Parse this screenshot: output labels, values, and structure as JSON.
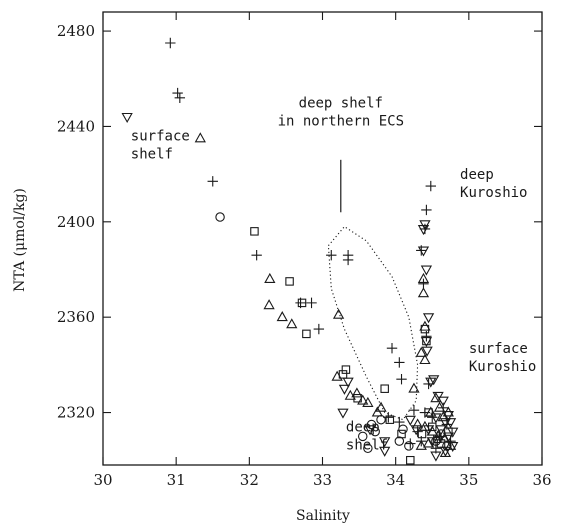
{
  "chart_data": {
    "type": "scatter",
    "title": "",
    "xlabel": "Salinity",
    "ylabel": "NTA (μmol/kg)",
    "xlim": [
      30,
      36
    ],
    "ylim": [
      2298,
      2488
    ],
    "x_ticks": [
      30,
      31,
      32,
      33,
      34,
      35,
      36
    ],
    "y_ticks": [
      2320,
      2360,
      2400,
      2440,
      2480
    ],
    "grid": false,
    "legend": "none",
    "series": [
      {
        "marker": "plus",
        "points": [
          [
            30.92,
            2475
          ],
          [
            31.02,
            2454
          ],
          [
            31.05,
            2452
          ],
          [
            31.5,
            2417
          ],
          [
            32.1,
            2386
          ],
          [
            32.7,
            2366
          ],
          [
            32.85,
            2366
          ],
          [
            32.95,
            2355
          ],
          [
            33.12,
            2386
          ],
          [
            33.35,
            2386
          ],
          [
            33.35,
            2384
          ],
          [
            33.95,
            2347
          ],
          [
            34.05,
            2341
          ],
          [
            34.08,
            2334
          ],
          [
            34.35,
            2388
          ],
          [
            34.4,
            2397
          ],
          [
            34.42,
            2405
          ],
          [
            34.48,
            2415
          ],
          [
            34.38,
            2374
          ],
          [
            34.42,
            2352
          ],
          [
            34.45,
            2332
          ],
          [
            34.25,
            2321
          ],
          [
            34.4,
            2320
          ],
          [
            34.3,
            2312
          ],
          [
            34.5,
            2318
          ],
          [
            34.6,
            2310
          ],
          [
            34.55,
            2305
          ],
          [
            34.7,
            2315
          ],
          [
            34.65,
            2322
          ],
          [
            34.2,
            2307
          ],
          [
            34.35,
            2308
          ],
          [
            34.75,
            2308
          ],
          [
            33.9,
            2318
          ],
          [
            34.05,
            2316
          ]
        ]
      },
      {
        "marker": "triangle-up",
        "points": [
          [
            31.33,
            2435
          ],
          [
            32.28,
            2376
          ],
          [
            32.27,
            2365
          ],
          [
            32.45,
            2360
          ],
          [
            32.58,
            2357
          ],
          [
            33.22,
            2361
          ],
          [
            33.2,
            2335
          ],
          [
            33.38,
            2327
          ],
          [
            33.47,
            2328
          ],
          [
            33.55,
            2325
          ],
          [
            33.62,
            2324
          ],
          [
            33.8,
            2322
          ],
          [
            34.38,
            2376
          ],
          [
            34.38,
            2370
          ],
          [
            34.4,
            2356
          ],
          [
            34.35,
            2345
          ],
          [
            34.4,
            2342
          ],
          [
            34.25,
            2330
          ],
          [
            34.55,
            2326
          ],
          [
            34.6,
            2322
          ],
          [
            34.65,
            2318
          ],
          [
            34.72,
            2320
          ],
          [
            34.48,
            2320
          ],
          [
            34.3,
            2315
          ],
          [
            34.4,
            2314
          ],
          [
            34.5,
            2312
          ],
          [
            34.58,
            2310
          ],
          [
            34.67,
            2309
          ],
          [
            34.75,
            2306
          ],
          [
            34.35,
            2306
          ],
          [
            34.45,
            2307
          ],
          [
            34.68,
            2303
          ],
          [
            33.75,
            2320
          ]
        ]
      },
      {
        "marker": "triangle-down",
        "points": [
          [
            30.33,
            2444
          ],
          [
            33.3,
            2330
          ],
          [
            33.35,
            2333
          ],
          [
            33.28,
            2320
          ],
          [
            33.65,
            2313
          ],
          [
            33.85,
            2308
          ],
          [
            33.85,
            2304
          ],
          [
            34.38,
            2397
          ],
          [
            34.4,
            2399
          ],
          [
            34.38,
            2388
          ],
          [
            34.42,
            2380
          ],
          [
            34.45,
            2360
          ],
          [
            34.42,
            2350
          ],
          [
            34.43,
            2346
          ],
          [
            34.52,
            2334
          ],
          [
            34.48,
            2333
          ],
          [
            34.58,
            2327
          ],
          [
            34.65,
            2325
          ],
          [
            34.72,
            2319
          ],
          [
            34.75,
            2316
          ],
          [
            34.78,
            2312
          ],
          [
            34.55,
            2318
          ],
          [
            34.62,
            2313
          ],
          [
            34.68,
            2316
          ],
          [
            34.72,
            2310
          ],
          [
            34.78,
            2306
          ],
          [
            34.5,
            2308
          ],
          [
            34.55,
            2302
          ],
          [
            34.68,
            2304
          ],
          [
            34.45,
            2313
          ],
          [
            34.2,
            2317
          ],
          [
            34.28,
            2313
          ]
        ]
      },
      {
        "marker": "square",
        "points": [
          [
            32.07,
            2396
          ],
          [
            32.55,
            2375
          ],
          [
            32.72,
            2366
          ],
          [
            32.78,
            2353
          ],
          [
            33.28,
            2336
          ],
          [
            33.32,
            2338
          ],
          [
            33.48,
            2326
          ],
          [
            33.85,
            2330
          ],
          [
            33.92,
            2317
          ],
          [
            34.2,
            2300
          ],
          [
            34.4,
            2355
          ],
          [
            34.42,
            2350
          ],
          [
            34.45,
            2320
          ],
          [
            34.5,
            2314
          ],
          [
            34.57,
            2309
          ],
          [
            34.62,
            2307
          ],
          [
            34.72,
            2312
          ],
          [
            34.36,
            2311
          ],
          [
            34.08,
            2311
          ]
        ]
      },
      {
        "marker": "circle",
        "points": [
          [
            31.6,
            2402
          ],
          [
            33.67,
            2315
          ],
          [
            33.72,
            2312
          ],
          [
            33.8,
            2317
          ],
          [
            34.05,
            2308
          ],
          [
            34.1,
            2313
          ],
          [
            34.18,
            2306
          ],
          [
            34.62,
            2311
          ],
          [
            34.7,
            2306
          ],
          [
            33.55,
            2310
          ],
          [
            33.62,
            2305
          ],
          [
            34.55,
            2308
          ]
        ]
      }
    ],
    "region_outline": {
      "style": "dotted",
      "label": "deep shelf in northern ECS",
      "points": [
        [
          33.08,
          2390
        ],
        [
          33.3,
          2398
        ],
        [
          33.6,
          2392
        ],
        [
          33.95,
          2377
        ],
        [
          34.18,
          2360
        ],
        [
          34.3,
          2340
        ],
        [
          34.28,
          2325
        ],
        [
          34.1,
          2317
        ],
        [
          33.85,
          2320
        ],
        [
          33.6,
          2335
        ],
        [
          33.3,
          2355
        ],
        [
          33.12,
          2372
        ],
        [
          33.08,
          2390
        ]
      ]
    },
    "annotations": [
      {
        "lines": [
          "surface",
          "shelf"
        ],
        "at": [
          30.38,
          2434
        ]
      },
      {
        "lines": [
          "deep shelf",
          "in northern ECS"
        ],
        "at": [
          33.22,
          2448
        ]
      },
      {
        "lines": [
          "deep",
          "Kuroshio"
        ],
        "at": [
          34.88,
          2418
        ]
      },
      {
        "lines": [
          "surface",
          "Kuroshio"
        ],
        "at": [
          35.0,
          2345
        ]
      },
      {
        "lines": [
          "deep",
          "shelf"
        ],
        "at": [
          33.32,
          2312
        ]
      }
    ],
    "pointer_line": {
      "from": [
        33.25,
        2426
      ],
      "to": [
        33.25,
        2404
      ]
    }
  }
}
